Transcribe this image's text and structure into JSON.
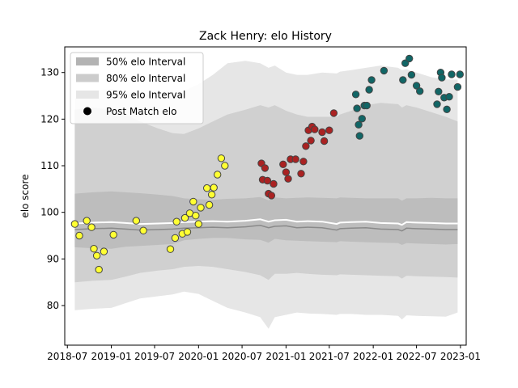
{
  "chart_data": {
    "type": "scatter",
    "title": "Zack Henry: elo History",
    "xlabel": "",
    "ylabel": "elo score",
    "x_axis": {
      "type": "date",
      "range": [
        "2018-06-20",
        "2023-01-25"
      ],
      "ticks": [
        "2018-07-01",
        "2019-01-01",
        "2019-07-01",
        "2020-01-01",
        "2020-07-01",
        "2021-01-01",
        "2021-07-01",
        "2022-01-01",
        "2022-07-01",
        "2023-01-01"
      ],
      "tick_labels": [
        "2018-07",
        "2019-01",
        "2019-07",
        "2020-01",
        "2020-07",
        "2021-01",
        "2021-07",
        "2022-01",
        "2022-07",
        "2023-01"
      ]
    },
    "y_axis": {
      "range": [
        71.5,
        135.5
      ],
      "ticks": [
        80,
        90,
        100,
        110,
        120,
        130
      ],
      "tick_labels": [
        "80",
        "90",
        "100",
        "110",
        "120",
        "130"
      ]
    },
    "grid": false,
    "legend": {
      "placement": "top-left",
      "entries": [
        {
          "label": "50% elo Interval",
          "swatch": "#b3b3b3"
        },
        {
          "label": "80% elo Interval",
          "swatch": "#cccccc"
        },
        {
          "label": "95% elo Interval",
          "swatch": "#e6e6e6"
        },
        {
          "label": "Post Match elo",
          "marker": "#000000"
        }
      ]
    },
    "bands": {
      "x": [
        "2018-08-01",
        "2018-10-15",
        "2019-01-01",
        "2019-03-01",
        "2019-05-01",
        "2019-07-15",
        "2019-09-15",
        "2019-11-01",
        "2020-01-01",
        "2020-03-01",
        "2020-05-01",
        "2020-07-15",
        "2020-09-15",
        "2020-10-20",
        "2020-11-15",
        "2021-01-01",
        "2021-02-15",
        "2021-04-01",
        "2021-06-01",
        "2021-08-01",
        "2021-08-15",
        "2021-10-01",
        "2021-12-01",
        "2022-02-01",
        "2022-04-15",
        "2022-05-01",
        "2022-05-20",
        "2022-07-01",
        "2022-09-01",
        "2022-11-01",
        "2022-12-20"
      ],
      "median": [
        97.6,
        97.8,
        97.9,
        97.7,
        97.5,
        97.6,
        97.7,
        97.9,
        98.0,
        98.1,
        98.0,
        98.2,
        98.5,
        98.0,
        98.3,
        98.4,
        98.0,
        98.1,
        98.0,
        97.5,
        97.8,
        97.9,
        98.0,
        97.7,
        97.6,
        97.3,
        97.9,
        97.8,
        97.7,
        97.6,
        97.6
      ],
      "inner_lo": [
        92.5,
        92.3,
        92.2,
        92.6,
        92.8,
        93.0,
        93.2,
        94.0,
        94.3,
        94.5,
        94.5,
        94.2,
        94.1,
        93.5,
        94.3,
        94.0,
        93.9,
        93.8,
        93.7,
        93.6,
        93.8,
        93.7,
        93.6,
        93.5,
        93.4,
        93.0,
        93.4,
        93.3,
        93.2,
        93.1,
        93.2
      ],
      "inner_hi": [
        104.0,
        104.3,
        104.5,
        104.3,
        104.1,
        103.8,
        103.5,
        103.0,
        102.8,
        102.7,
        102.9,
        103.0,
        103.3,
        102.6,
        103.2,
        103.0,
        103.1,
        103.2,
        103.1,
        103.0,
        103.2,
        103.1,
        103.0,
        103.0,
        103.0,
        102.5,
        103.0,
        103.0,
        103.1,
        103.0,
        103.0
      ],
      "mid_lo": [
        85.0,
        85.3,
        85.5,
        86.2,
        87.0,
        87.5,
        87.8,
        88.3,
        88.5,
        88.3,
        87.8,
        87.2,
        86.5,
        85.5,
        86.8,
        86.8,
        87.0,
        86.8,
        86.6,
        86.5,
        86.7,
        86.6,
        86.5,
        86.4,
        86.3,
        85.8,
        86.4,
        86.3,
        86.2,
        86.1,
        86.0
      ],
      "mid_hi": [
        122.0,
        122.5,
        122.0,
        121.0,
        119.5,
        118.0,
        117.0,
        116.8,
        118.0,
        119.5,
        121.0,
        122.0,
        123.0,
        122.5,
        123.0,
        121.8,
        121.0,
        120.5,
        120.5,
        120.5,
        121.0,
        121.8,
        123.0,
        123.5,
        123.2,
        122.5,
        123.0,
        122.5,
        121.5,
        120.5,
        119.5
      ],
      "outer_lo": [
        79.0,
        79.3,
        79.5,
        80.5,
        81.5,
        82.0,
        82.4,
        83.0,
        82.5,
        81.0,
        79.5,
        78.5,
        77.5,
        75.0,
        77.5,
        78.0,
        78.5,
        78.3,
        78.2,
        78.0,
        78.2,
        78.2,
        78.0,
        78.0,
        77.8,
        77.0,
        77.9,
        77.8,
        77.7,
        77.6,
        78.5
      ],
      "outer_hi": [
        124.5,
        126.0,
        126.5,
        126.0,
        125.5,
        125.0,
        125.0,
        126.0,
        127.5,
        129.5,
        132.0,
        132.5,
        132.0,
        131.0,
        131.5,
        130.0,
        129.5,
        129.5,
        130.0,
        129.8,
        130.2,
        130.5,
        131.0,
        131.5,
        131.0,
        130.5,
        130.7,
        130.0,
        129.0,
        128.5,
        128.5
      ]
    },
    "series": [
      {
        "color": "#ffff33",
        "points": [
          {
            "x": "2018-08-01",
            "y": 97.5
          },
          {
            "x": "2018-08-20",
            "y": 95.0
          },
          {
            "x": "2018-09-20",
            "y": 98.2
          },
          {
            "x": "2018-10-10",
            "y": 96.8
          },
          {
            "x": "2018-10-20",
            "y": 92.2
          },
          {
            "x": "2018-11-01",
            "y": 90.7
          },
          {
            "x": "2018-11-10",
            "y": 87.7
          },
          {
            "x": "2018-12-01",
            "y": 91.6
          },
          {
            "x": "2019-01-10",
            "y": 95.2
          },
          {
            "x": "2019-04-15",
            "y": 98.2
          },
          {
            "x": "2019-05-15",
            "y": 96.1
          },
          {
            "x": "2019-09-05",
            "y": 92.1
          },
          {
            "x": "2019-09-25",
            "y": 94.5
          },
          {
            "x": "2019-10-01",
            "y": 98.0
          },
          {
            "x": "2019-10-25",
            "y": 95.4
          },
          {
            "x": "2019-11-05",
            "y": 98.8
          },
          {
            "x": "2019-11-15",
            "y": 95.8
          },
          {
            "x": "2019-11-25",
            "y": 99.8
          },
          {
            "x": "2019-12-10",
            "y": 102.3
          },
          {
            "x": "2019-12-20",
            "y": 99.3
          },
          {
            "x": "2020-01-01",
            "y": 97.5
          },
          {
            "x": "2020-01-10",
            "y": 101.0
          },
          {
            "x": "2020-02-05",
            "y": 105.2
          },
          {
            "x": "2020-02-15",
            "y": 101.6
          },
          {
            "x": "2020-02-25",
            "y": 103.8
          },
          {
            "x": "2020-03-05",
            "y": 105.3
          },
          {
            "x": "2020-03-20",
            "y": 108.1
          },
          {
            "x": "2020-04-05",
            "y": 111.6
          },
          {
            "x": "2020-04-20",
            "y": 110.0
          }
        ]
      },
      {
        "color": "#aa2222",
        "points": [
          {
            "x": "2020-09-20",
            "y": 110.5
          },
          {
            "x": "2020-09-25",
            "y": 107.0
          },
          {
            "x": "2020-10-05",
            "y": 109.5
          },
          {
            "x": "2020-10-15",
            "y": 106.8
          },
          {
            "x": "2020-10-20",
            "y": 104.0
          },
          {
            "x": "2020-11-01",
            "y": 103.6
          },
          {
            "x": "2020-11-10",
            "y": 106.1
          },
          {
            "x": "2020-12-20",
            "y": 110.3
          },
          {
            "x": "2021-01-01",
            "y": 108.6
          },
          {
            "x": "2021-01-10",
            "y": 107.2
          },
          {
            "x": "2021-01-20",
            "y": 111.4
          },
          {
            "x": "2021-02-10",
            "y": 111.4
          },
          {
            "x": "2021-03-05",
            "y": 108.3
          },
          {
            "x": "2021-03-15",
            "y": 110.9
          },
          {
            "x": "2021-03-25",
            "y": 114.2
          },
          {
            "x": "2021-04-05",
            "y": 117.6
          },
          {
            "x": "2021-04-15",
            "y": 115.4
          },
          {
            "x": "2021-04-20",
            "y": 118.4
          },
          {
            "x": "2021-05-01",
            "y": 117.8
          },
          {
            "x": "2021-06-01",
            "y": 117.2
          },
          {
            "x": "2021-06-10",
            "y": 115.3
          },
          {
            "x": "2021-07-01",
            "y": 117.6
          },
          {
            "x": "2021-07-20",
            "y": 121.3
          }
        ]
      },
      {
        "color": "#116666",
        "points": [
          {
            "x": "2021-10-20",
            "y": 125.3
          },
          {
            "x": "2021-10-25",
            "y": 122.3
          },
          {
            "x": "2021-11-01",
            "y": 118.8
          },
          {
            "x": "2021-11-05",
            "y": 116.4
          },
          {
            "x": "2021-11-15",
            "y": 120.1
          },
          {
            "x": "2021-11-25",
            "y": 122.9
          },
          {
            "x": "2021-12-05",
            "y": 122.9
          },
          {
            "x": "2021-12-15",
            "y": 126.3
          },
          {
            "x": "2021-12-25",
            "y": 128.4
          },
          {
            "x": "2022-02-15",
            "y": 130.4
          },
          {
            "x": "2022-05-05",
            "y": 128.4
          },
          {
            "x": "2022-05-15",
            "y": 132.0
          },
          {
            "x": "2022-06-01",
            "y": 133.0
          },
          {
            "x": "2022-06-10",
            "y": 129.5
          },
          {
            "x": "2022-07-01",
            "y": 127.2
          },
          {
            "x": "2022-07-15",
            "y": 126.0
          },
          {
            "x": "2022-09-25",
            "y": 123.2
          },
          {
            "x": "2022-10-01",
            "y": 125.9
          },
          {
            "x": "2022-10-10",
            "y": 130.0
          },
          {
            "x": "2022-10-15",
            "y": 128.9
          },
          {
            "x": "2022-10-25",
            "y": 124.6
          },
          {
            "x": "2022-11-05",
            "y": 122.1
          },
          {
            "x": "2022-11-15",
            "y": 124.8
          },
          {
            "x": "2022-11-25",
            "y": 129.6
          },
          {
            "x": "2022-12-20",
            "y": 126.9
          },
          {
            "x": "2022-12-30",
            "y": 129.6
          }
        ]
      }
    ]
  }
}
